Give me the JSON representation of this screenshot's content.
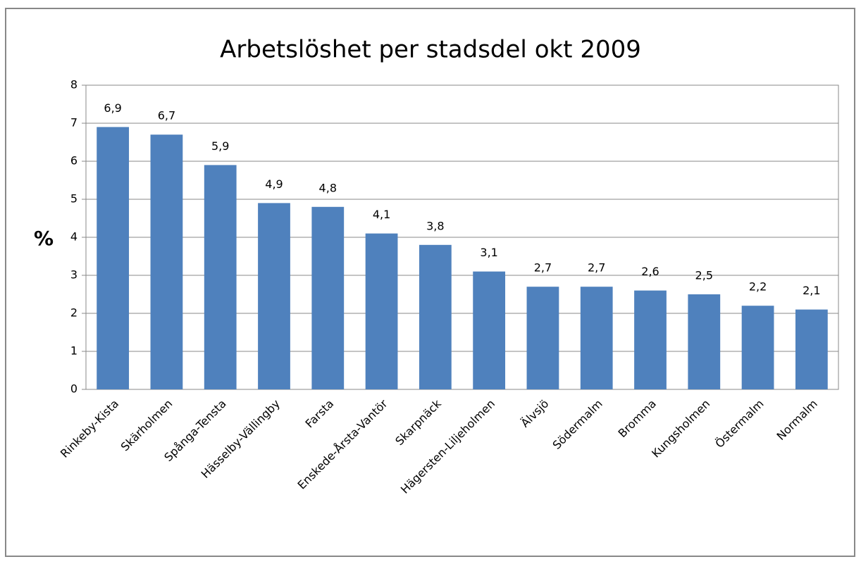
{
  "chart_data": {
    "type": "bar",
    "title": "Arbetslöshet per stadsdel okt 2009",
    "y_label": "%",
    "categories": [
      "Rinkeby-Kista",
      "Skärholmen",
      "Spånga-Tensta",
      "Hässelby-Vällingby",
      "Farsta",
      "Enskede-Årsta-Vantör",
      "Skarpnäck",
      "Hägersten-Liljeholmen",
      "Älvsjö",
      "Södermalm",
      "Bromma",
      "Kungsholmen",
      "Östermalm",
      "Normalm"
    ],
    "values": [
      6.9,
      6.7,
      5.9,
      4.9,
      4.8,
      4.1,
      3.8,
      3.1,
      2.7,
      2.7,
      2.6,
      2.5,
      2.2,
      2.1
    ],
    "value_labels": [
      "6,9",
      "6,7",
      "5,9",
      "4,9",
      "4,8",
      "4,1",
      "3,8",
      "3,1",
      "2,7",
      "2,7",
      "2,6",
      "2,5",
      "2,2",
      "2,1"
    ],
    "color": "#4f81bd",
    "ylim": [
      0,
      8
    ],
    "yticks": [
      0,
      1,
      2,
      3,
      4,
      5,
      6,
      7,
      8
    ],
    "grid": true
  }
}
